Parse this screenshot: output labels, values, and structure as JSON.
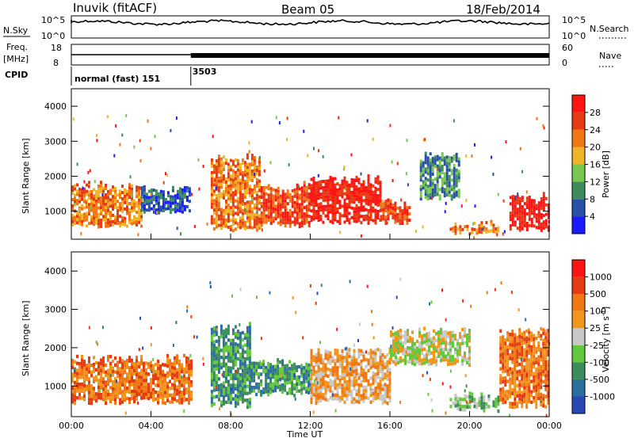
{
  "header": {
    "station": "Inuvik (fitACF)",
    "beam": "Beam 05",
    "date": "18/Feb/2014"
  },
  "top_panels": {
    "nsky_label": "N.Sky",
    "nsearch_label": "N.Search",
    "freq_label_1": "Freq.",
    "freq_label_2": "[MHz]",
    "nave_label": "Nave",
    "cpid_label": "CPID",
    "nsky_ticks": [
      "10^5",
      "10^0"
    ],
    "nsearch_ticks": [
      "10^5",
      "10^0"
    ],
    "freq_ticks": [
      "18",
      "8"
    ],
    "nave_ticks": [
      "60",
      "0"
    ],
    "cpid_segments": [
      {
        "label": "normal (fast) 151",
        "start_hour": 0,
        "end_hour": 6.0
      },
      {
        "label": "3503",
        "start_hour": 6.0,
        "end_hour": 24.0
      }
    ]
  },
  "chart_data": [
    {
      "type": "heatmap",
      "name": "power",
      "xlabel": "Time UT",
      "ylabel": "Slant Range [km]",
      "xlim": [
        0,
        24
      ],
      "ylim": [
        200,
        4500
      ],
      "y_ticks": [
        "1000",
        "2000",
        "3000",
        "4000"
      ],
      "colorbar_label": "Power [dB]",
      "colorbar_ticks": [
        "4",
        "8",
        "12",
        "16",
        "20",
        "24",
        "28"
      ],
      "colorbar_colors": [
        "#1a1aff",
        "#2850a8",
        "#3c8c5c",
        "#78c850",
        "#f0b428",
        "#f07814",
        "#e63c14",
        "#ff1414"
      ],
      "echo_regions": [
        {
          "t_start": 0.0,
          "t_end": 3.5,
          "r_low": 500,
          "r_high": 1800,
          "level": 5
        },
        {
          "t_start": 3.5,
          "t_end": 6.0,
          "r_low": 900,
          "r_high": 1700,
          "level": 1
        },
        {
          "t_start": 7.0,
          "t_end": 9.5,
          "r_low": 400,
          "r_high": 2600,
          "level": 5
        },
        {
          "t_start": 9.5,
          "t_end": 12.0,
          "r_low": 500,
          "r_high": 1800,
          "level": 6
        },
        {
          "t_start": 12.0,
          "t_end": 15.5,
          "r_low": 600,
          "r_high": 2000,
          "level": 7
        },
        {
          "t_start": 15.5,
          "t_end": 17.0,
          "r_low": 600,
          "r_high": 1300,
          "level": 6
        },
        {
          "t_start": 17.5,
          "t_end": 19.5,
          "r_low": 1300,
          "r_high": 2700,
          "level": 2
        },
        {
          "t_start": 19.0,
          "t_end": 21.5,
          "r_low": 300,
          "r_high": 700,
          "level": 5
        },
        {
          "t_start": 22.0,
          "t_end": 24.0,
          "r_low": 400,
          "r_high": 1500,
          "level": 7
        }
      ]
    },
    {
      "type": "heatmap",
      "name": "velocity",
      "xlabel": "Time UT",
      "ylabel": "Slant Range [km]",
      "xlim": [
        0,
        24
      ],
      "ylim": [
        200,
        4500
      ],
      "x_ticks": [
        "00:00",
        "04:00",
        "08:00",
        "12:00",
        "16:00",
        "20:00",
        "00:00"
      ],
      "y_ticks": [
        "1000",
        "2000",
        "3000",
        "4000"
      ],
      "colorbar_label": "Velocity [m s",
      "colorbar_label_sup": "-1",
      "colorbar_label_end": "]",
      "colorbar_ticks": [
        "1000",
        "500",
        "100",
        "25",
        "-25",
        "-100",
        "-500",
        "-1000"
      ],
      "colorbar_colors": [
        "#2848b4",
        "#2d6ea0",
        "#3c8c5c",
        "#64c83c",
        "#c8c8c8",
        "#f0961e",
        "#f07814",
        "#e63c14",
        "#ff1414"
      ],
      "echo_regions": [
        {
          "t_start": 0.0,
          "t_end": 6.0,
          "r_low": 500,
          "r_high": 1800,
          "level": 6
        },
        {
          "t_start": 7.0,
          "t_end": 9.0,
          "r_low": 400,
          "r_high": 2600,
          "level": 2
        },
        {
          "t_start": 9.0,
          "t_end": 12.0,
          "r_low": 700,
          "r_high": 1700,
          "level": 2
        },
        {
          "t_start": 12.0,
          "t_end": 16.0,
          "r_low": 500,
          "r_high": 2000,
          "level": 5
        },
        {
          "t_start": 16.0,
          "t_end": 20.0,
          "r_low": 1500,
          "r_high": 2500,
          "level": 4
        },
        {
          "t_start": 19.0,
          "t_end": 21.5,
          "r_low": 300,
          "r_high": 800,
          "level": 3
        },
        {
          "t_start": 21.5,
          "t_end": 24.0,
          "r_low": 400,
          "r_high": 2500,
          "level": 6
        }
      ]
    }
  ]
}
